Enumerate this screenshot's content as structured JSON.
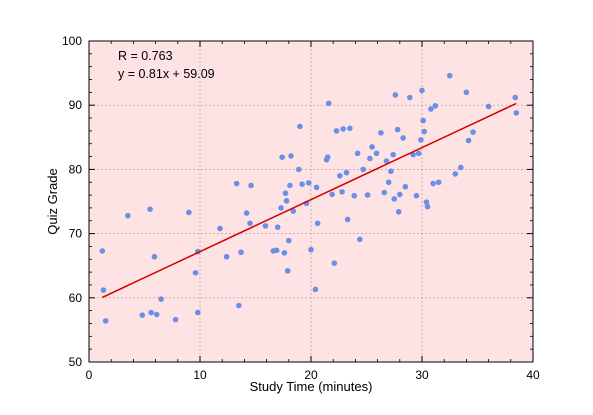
{
  "chart_data": {
    "type": "scatter",
    "xlabel": "Study Time (minutes)",
    "ylabel": "Quiz Grade",
    "xlim": [
      0,
      40
    ],
    "ylim": [
      50,
      100
    ],
    "xticks": [
      0,
      10,
      20,
      30,
      40
    ],
    "yticks": [
      50,
      60,
      70,
      80,
      90,
      100
    ],
    "grid": true,
    "annotations": [
      "R = 0.763",
      "y = 0.81x + 59.09"
    ],
    "fit_line": {
      "slope": 0.81,
      "intercept": 59.09,
      "x_range": [
        1.2,
        38.5
      ]
    },
    "colors": {
      "background": "#fde3e3",
      "points": "#6a8fe6",
      "fit_line": "#d40000"
    },
    "points": [
      {
        "x": 1.2,
        "y": 67.3
      },
      {
        "x": 1.3,
        "y": 61.2
      },
      {
        "x": 1.5,
        "y": 56.4
      },
      {
        "x": 3.5,
        "y": 72.8
      },
      {
        "x": 4.8,
        "y": 57.3
      },
      {
        "x": 5.5,
        "y": 73.8
      },
      {
        "x": 5.6,
        "y": 57.7
      },
      {
        "x": 5.9,
        "y": 66.4
      },
      {
        "x": 6.1,
        "y": 57.4
      },
      {
        "x": 6.5,
        "y": 59.8
      },
      {
        "x": 7.8,
        "y": 56.6
      },
      {
        "x": 9.0,
        "y": 73.3
      },
      {
        "x": 9.6,
        "y": 63.9
      },
      {
        "x": 9.8,
        "y": 67.2
      },
      {
        "x": 9.8,
        "y": 57.7
      },
      {
        "x": 11.8,
        "y": 70.8
      },
      {
        "x": 12.4,
        "y": 66.4
      },
      {
        "x": 13.3,
        "y": 77.8
      },
      {
        "x": 13.5,
        "y": 58.8
      },
      {
        "x": 13.7,
        "y": 67.1
      },
      {
        "x": 14.2,
        "y": 73.2
      },
      {
        "x": 14.5,
        "y": 71.6
      },
      {
        "x": 14.6,
        "y": 77.5
      },
      {
        "x": 15.9,
        "y": 71.2
      },
      {
        "x": 16.6,
        "y": 67.3
      },
      {
        "x": 16.9,
        "y": 67.4
      },
      {
        "x": 17.0,
        "y": 71.0
      },
      {
        "x": 17.3,
        "y": 74.0
      },
      {
        "x": 17.4,
        "y": 81.9
      },
      {
        "x": 17.6,
        "y": 67.0
      },
      {
        "x": 17.7,
        "y": 76.3
      },
      {
        "x": 17.8,
        "y": 75.1
      },
      {
        "x": 17.9,
        "y": 64.2
      },
      {
        "x": 18.0,
        "y": 68.9
      },
      {
        "x": 18.1,
        "y": 77.5
      },
      {
        "x": 18.2,
        "y": 82.1
      },
      {
        "x": 18.4,
        "y": 73.5
      },
      {
        "x": 18.9,
        "y": 80.0
      },
      {
        "x": 19.0,
        "y": 86.7
      },
      {
        "x": 19.2,
        "y": 77.7
      },
      {
        "x": 19.6,
        "y": 74.7
      },
      {
        "x": 19.8,
        "y": 77.9
      },
      {
        "x": 20.0,
        "y": 67.5
      },
      {
        "x": 20.4,
        "y": 61.3
      },
      {
        "x": 20.5,
        "y": 77.2
      },
      {
        "x": 20.6,
        "y": 71.6
      },
      {
        "x": 21.4,
        "y": 81.5
      },
      {
        "x": 21.5,
        "y": 81.9
      },
      {
        "x": 21.6,
        "y": 90.3
      },
      {
        "x": 21.9,
        "y": 76.1
      },
      {
        "x": 22.1,
        "y": 65.4
      },
      {
        "x": 22.3,
        "y": 86.0
      },
      {
        "x": 22.6,
        "y": 79.0
      },
      {
        "x": 22.8,
        "y": 76.5
      },
      {
        "x": 22.9,
        "y": 86.3
      },
      {
        "x": 23.2,
        "y": 79.5
      },
      {
        "x": 23.3,
        "y": 72.2
      },
      {
        "x": 23.5,
        "y": 86.4
      },
      {
        "x": 23.9,
        "y": 75.9
      },
      {
        "x": 24.2,
        "y": 82.5
      },
      {
        "x": 24.4,
        "y": 69.1
      },
      {
        "x": 24.7,
        "y": 80.0
      },
      {
        "x": 25.1,
        "y": 76.0
      },
      {
        "x": 25.3,
        "y": 81.7
      },
      {
        "x": 25.5,
        "y": 83.5
      },
      {
        "x": 25.9,
        "y": 82.5
      },
      {
        "x": 26.3,
        "y": 85.7
      },
      {
        "x": 26.6,
        "y": 76.4
      },
      {
        "x": 26.8,
        "y": 81.3
      },
      {
        "x": 27.0,
        "y": 78.0
      },
      {
        "x": 27.2,
        "y": 79.7
      },
      {
        "x": 27.4,
        "y": 82.3
      },
      {
        "x": 27.5,
        "y": 75.4
      },
      {
        "x": 27.6,
        "y": 91.6
      },
      {
        "x": 27.8,
        "y": 86.2
      },
      {
        "x": 27.9,
        "y": 73.4
      },
      {
        "x": 28.0,
        "y": 76.1
      },
      {
        "x": 28.3,
        "y": 84.9
      },
      {
        "x": 28.5,
        "y": 77.3
      },
      {
        "x": 28.9,
        "y": 91.2
      },
      {
        "x": 29.2,
        "y": 82.3
      },
      {
        "x": 29.5,
        "y": 75.9
      },
      {
        "x": 29.7,
        "y": 82.5
      },
      {
        "x": 29.9,
        "y": 84.6
      },
      {
        "x": 30.0,
        "y": 92.3
      },
      {
        "x": 30.1,
        "y": 87.6
      },
      {
        "x": 30.2,
        "y": 85.9
      },
      {
        "x": 30.4,
        "y": 74.9
      },
      {
        "x": 30.5,
        "y": 74.2
      },
      {
        "x": 30.8,
        "y": 89.4
      },
      {
        "x": 31.0,
        "y": 77.8
      },
      {
        "x": 31.2,
        "y": 89.9
      },
      {
        "x": 31.5,
        "y": 78.0
      },
      {
        "x": 32.5,
        "y": 94.6
      },
      {
        "x": 33.0,
        "y": 79.3
      },
      {
        "x": 33.5,
        "y": 80.3
      },
      {
        "x": 34.0,
        "y": 92.0
      },
      {
        "x": 34.2,
        "y": 84.5
      },
      {
        "x": 34.6,
        "y": 85.8
      },
      {
        "x": 36.0,
        "y": 89.8
      },
      {
        "x": 38.4,
        "y": 91.2
      },
      {
        "x": 38.5,
        "y": 88.8
      }
    ]
  }
}
